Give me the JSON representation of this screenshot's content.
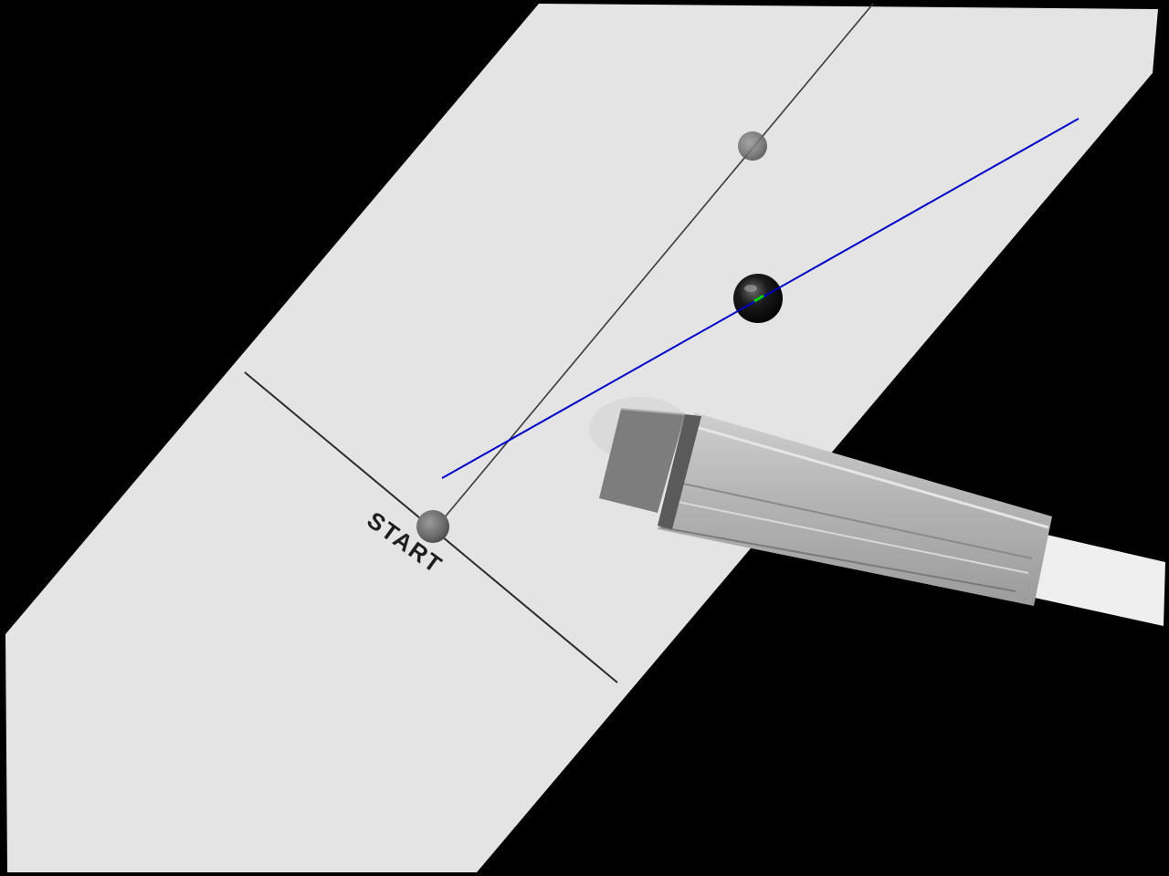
{
  "scene": {
    "start_label": "START",
    "colors": {
      "background": "#000000",
      "track": "#e4e4e4",
      "trajectory_line": "#0000c8",
      "marker": "#00d800"
    },
    "objects": [
      "track-strip",
      "start-line",
      "guide-line",
      "start-ball",
      "ghost-ball",
      "tracked-ball",
      "trajectory-line",
      "pusher-arm"
    ]
  }
}
